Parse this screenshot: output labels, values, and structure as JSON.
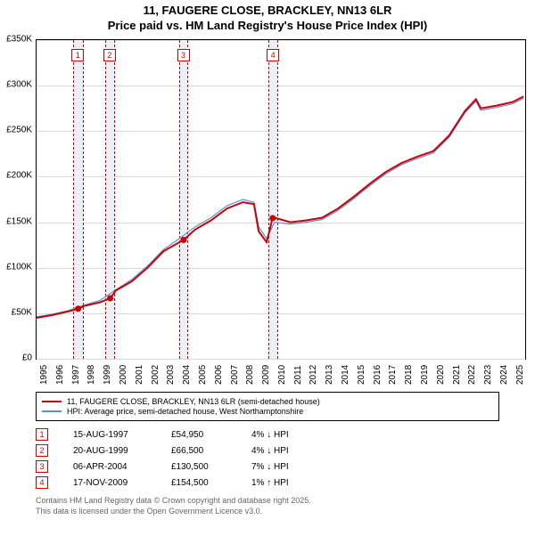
{
  "title": {
    "line1": "11, FAUGERE CLOSE, BRACKLEY, NN13 6LR",
    "line2": "Price paid vs. HM Land Registry's House Price Index (HPI)"
  },
  "chart": {
    "type": "line",
    "background_color": "#ffffff",
    "grid_color": "#d9d9d9",
    "plot_border_color": "#000000",
    "x": {
      "min": 1995,
      "max": 2025.8,
      "ticks": [
        1995,
        1996,
        1997,
        1998,
        1999,
        2000,
        2001,
        2002,
        2003,
        2004,
        2005,
        2006,
        2007,
        2008,
        2009,
        2010,
        2011,
        2012,
        2013,
        2014,
        2015,
        2016,
        2017,
        2018,
        2019,
        2020,
        2021,
        2022,
        2023,
        2024,
        2025
      ],
      "label_fontsize": 10
    },
    "y": {
      "min": 0,
      "max": 350000,
      "ticks": [
        0,
        50000,
        100000,
        150000,
        200000,
        250000,
        300000,
        350000
      ],
      "tick_labels": [
        "£0",
        "£50K",
        "£100K",
        "£150K",
        "£200K",
        "£250K",
        "£300K",
        "£350K"
      ],
      "label_fontsize": 10
    },
    "bands": [
      {
        "from": 1997.3,
        "to": 1997.9,
        "marker": "1",
        "marker_color": "#cc0000"
      },
      {
        "from": 1999.3,
        "to": 1999.9,
        "marker": "2",
        "marker_color": "#cc0000"
      },
      {
        "from": 2004.0,
        "to": 2004.5,
        "marker": "3",
        "marker_color": "#cc0000"
      },
      {
        "from": 2009.6,
        "to": 2010.2,
        "marker": "4",
        "marker_color": "#cc0000"
      }
    ],
    "band_fill": "#eaf0f6",
    "band_dash_color": "#cc0000",
    "series": [
      {
        "name": "property",
        "label": "11, FAUGERE CLOSE, BRACKLEY, NN13 6LR (semi-detached house)",
        "color": "#cc0000",
        "line_width": 2,
        "data": [
          [
            1995,
            45000
          ],
          [
            1996,
            48000
          ],
          [
            1997,
            52000
          ],
          [
            1997.62,
            54950
          ],
          [
            1998,
            58000
          ],
          [
            1999,
            62000
          ],
          [
            1999.64,
            66500
          ],
          [
            2000,
            75000
          ],
          [
            2001,
            85000
          ],
          [
            2002,
            100000
          ],
          [
            2003,
            118000
          ],
          [
            2004,
            128000
          ],
          [
            2004.27,
            130500
          ],
          [
            2005,
            142000
          ],
          [
            2006,
            152000
          ],
          [
            2007,
            165000
          ],
          [
            2008,
            172000
          ],
          [
            2008.7,
            170000
          ],
          [
            2009,
            140000
          ],
          [
            2009.5,
            128000
          ],
          [
            2009.88,
            154500
          ],
          [
            2010,
            155000
          ],
          [
            2011,
            150000
          ],
          [
            2012,
            152000
          ],
          [
            2013,
            155000
          ],
          [
            2014,
            165000
          ],
          [
            2015,
            178000
          ],
          [
            2016,
            192000
          ],
          [
            2017,
            205000
          ],
          [
            2018,
            215000
          ],
          [
            2019,
            222000
          ],
          [
            2020,
            228000
          ],
          [
            2021,
            245000
          ],
          [
            2022,
            272000
          ],
          [
            2022.7,
            285000
          ],
          [
            2023,
            275000
          ],
          [
            2024,
            278000
          ],
          [
            2025,
            282000
          ],
          [
            2025.7,
            288000
          ]
        ],
        "sale_points": [
          {
            "x": 1997.62,
            "y": 54950
          },
          {
            "x": 1999.64,
            "y": 66500
          },
          {
            "x": 2004.27,
            "y": 130500
          },
          {
            "x": 2009.88,
            "y": 154500
          }
        ],
        "point_color": "#cc0000",
        "point_radius": 3.5
      },
      {
        "name": "hpi",
        "label": "HPI: Average price, semi-detached house, West Northamptonshire",
        "color": "#5b8fd6",
        "line_width": 1.2,
        "data": [
          [
            1995,
            46000
          ],
          [
            1996,
            49000
          ],
          [
            1997,
            53000
          ],
          [
            1998,
            59000
          ],
          [
            1999,
            64000
          ],
          [
            2000,
            76000
          ],
          [
            2001,
            87000
          ],
          [
            2002,
            102000
          ],
          [
            2003,
            120000
          ],
          [
            2004,
            132000
          ],
          [
            2005,
            145000
          ],
          [
            2006,
            155000
          ],
          [
            2007,
            168000
          ],
          [
            2008,
            175000
          ],
          [
            2008.7,
            172000
          ],
          [
            2009,
            145000
          ],
          [
            2009.5,
            132000
          ],
          [
            2010,
            150000
          ],
          [
            2011,
            148000
          ],
          [
            2012,
            150000
          ],
          [
            2013,
            153000
          ],
          [
            2014,
            163000
          ],
          [
            2015,
            176000
          ],
          [
            2016,
            190000
          ],
          [
            2017,
            203000
          ],
          [
            2018,
            213000
          ],
          [
            2019,
            220000
          ],
          [
            2020,
            226000
          ],
          [
            2021,
            243000
          ],
          [
            2022,
            270000
          ],
          [
            2022.7,
            283000
          ],
          [
            2023,
            273000
          ],
          [
            2024,
            276000
          ],
          [
            2025,
            280000
          ],
          [
            2025.7,
            286000
          ]
        ]
      }
    ]
  },
  "legend": {
    "items": [
      {
        "color": "#cc0000",
        "width": 2,
        "label": "11, FAUGERE CLOSE, BRACKLEY, NN13 6LR (semi-detached house)"
      },
      {
        "color": "#5b8fd6",
        "width": 1.2,
        "label": "HPI: Average price, semi-detached house, West Northamptonshire"
      }
    ]
  },
  "sales": [
    {
      "n": "1",
      "box_color": "#cc0000",
      "date": "15-AUG-1997",
      "price": "£54,950",
      "delta": "4% ↓ HPI"
    },
    {
      "n": "2",
      "box_color": "#cc0000",
      "date": "20-AUG-1999",
      "price": "£66,500",
      "delta": "4% ↓ HPI"
    },
    {
      "n": "3",
      "box_color": "#cc0000",
      "date": "06-APR-2004",
      "price": "£130,500",
      "delta": "7% ↓ HPI"
    },
    {
      "n": "4",
      "box_color": "#cc0000",
      "date": "17-NOV-2009",
      "price": "£154,500",
      "delta": "1% ↑ HPI"
    }
  ],
  "footer": {
    "line1": "Contains HM Land Registry data © Crown copyright and database right 2025.",
    "line2": "This data is licensed under the Open Government Licence v3.0."
  }
}
